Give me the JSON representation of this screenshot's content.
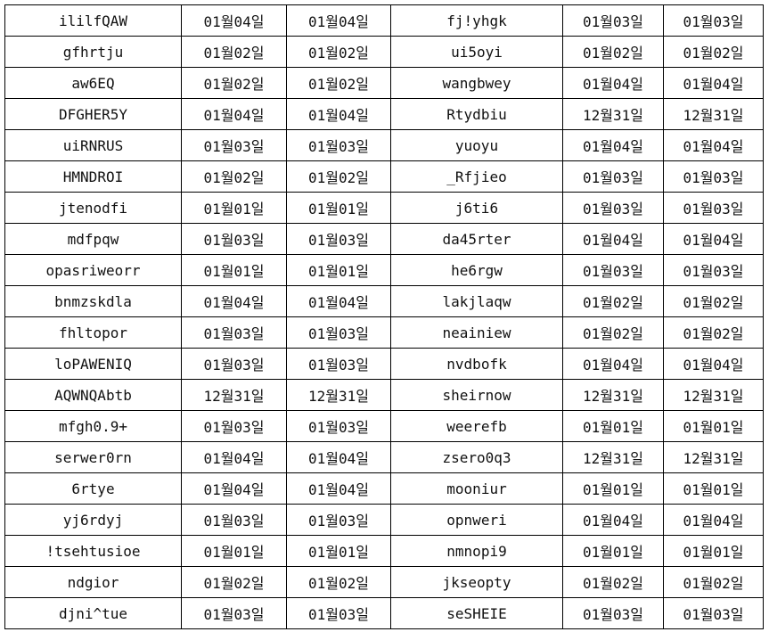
{
  "rows": [
    [
      "ililfQAW",
      "01월04일",
      "01월04일",
      "fj!yhgk",
      "01월03일",
      "01월03일"
    ],
    [
      "gfhrtju",
      "01월02일",
      "01월02일",
      "ui5oyi",
      "01월02일",
      "01월02일"
    ],
    [
      "aw6EQ",
      "01월02일",
      "01월02일",
      "wangbwey",
      "01월04일",
      "01월04일"
    ],
    [
      "DFGHER5Y",
      "01월04일",
      "01월04일",
      "Rtydbiu",
      "12월31일",
      "12월31일"
    ],
    [
      "uiRNRUS",
      "01월03일",
      "01월03일",
      "yuoyu",
      "01월04일",
      "01월04일"
    ],
    [
      "HMNDROI",
      "01월02일",
      "01월02일",
      "_Rfjieo",
      "01월03일",
      "01월03일"
    ],
    [
      "jtenodfi",
      "01월01일",
      "01월01일",
      "j6ti6",
      "01월03일",
      "01월03일"
    ],
    [
      "mdfpqw",
      "01월03일",
      "01월03일",
      "da45rter",
      "01월04일",
      "01월04일"
    ],
    [
      "opasriweorr",
      "01월01일",
      "01월01일",
      "he6rgw",
      "01월03일",
      "01월03일"
    ],
    [
      "bnmzskdla",
      "01월04일",
      "01월04일",
      "lakjlaqw",
      "01월02일",
      "01월02일"
    ],
    [
      "fhltopor",
      "01월03일",
      "01월03일",
      "neainiew",
      "01월02일",
      "01월02일"
    ],
    [
      "loPAWENIQ",
      "01월03일",
      "01월03일",
      "nvdbofk",
      "01월04일",
      "01월04일"
    ],
    [
      "AQWNQAbtb",
      "12월31일",
      "12월31일",
      "sheirnow",
      "12월31일",
      "12월31일"
    ],
    [
      "mfgh0.9+",
      "01월03일",
      "01월03일",
      "weerefb",
      "01월01일",
      "01월01일"
    ],
    [
      "serwer0rn",
      "01월04일",
      "01월04일",
      "zsero0q3",
      "12월31일",
      "12월31일"
    ],
    [
      "6rtye",
      "01월04일",
      "01월04일",
      "mooniur",
      "01월01일",
      "01월01일"
    ],
    [
      "yj6rdyj",
      "01월03일",
      "01월03일",
      "opnweri",
      "01월04일",
      "01월04일"
    ],
    [
      "!tsehtusioe",
      "01월01일",
      "01월01일",
      "nmnopi9",
      "01월01일",
      "01월01일"
    ],
    [
      "ndgior",
      "01월02일",
      "01월02일",
      "jkseopty",
      "01월02일",
      "01월02일"
    ],
    [
      "djni^tue",
      "01월03일",
      "01월03일",
      "seSHEIE",
      "01월03일",
      "01월03일"
    ]
  ]
}
